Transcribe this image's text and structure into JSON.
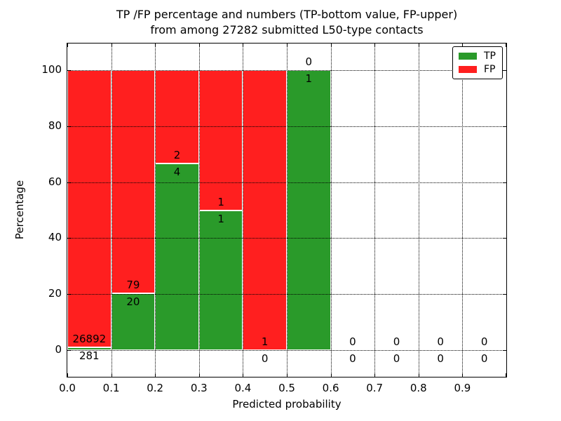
{
  "chart_data": {
    "type": "bar",
    "subtype": "stacked-percentage-histogram",
    "title_line1": "TP /FP percentage and numbers (TP-bottom value, FP-upper)",
    "title_line2": "from among 27282 submitted L50-type contacts",
    "xlabel": "Predicted probability",
    "ylabel": "Percentage",
    "x_tick_labels": [
      "0.0",
      "0.1",
      "0.2",
      "0.3",
      "0.4",
      "0.5",
      "0.6",
      "0.7",
      "0.8",
      "0.9"
    ],
    "y_ticks": [
      0,
      20,
      40,
      60,
      80,
      100
    ],
    "xlim": [
      0.0,
      1.0
    ],
    "ylim": [
      -9.5,
      109.5
    ],
    "bin_width": 0.1,
    "grid": true,
    "note": "Each bin stacked to 100%: green TP% bottom, red FP% top. Labels show raw counts: FP above the TP/FP boundary, TP below it.",
    "bins": [
      {
        "x0": 0.0,
        "x1": 0.1,
        "tp": 281,
        "fp": 26892
      },
      {
        "x0": 0.1,
        "x1": 0.2,
        "tp": 20,
        "fp": 79
      },
      {
        "x0": 0.2,
        "x1": 0.3,
        "tp": 4,
        "fp": 2
      },
      {
        "x0": 0.3,
        "x1": 0.4,
        "tp": 1,
        "fp": 1
      },
      {
        "x0": 0.4,
        "x1": 0.5,
        "tp": 0,
        "fp": 1
      },
      {
        "x0": 0.5,
        "x1": 0.6,
        "tp": 1,
        "fp": 0
      },
      {
        "x0": 0.6,
        "x1": 0.7,
        "tp": 0,
        "fp": 0
      },
      {
        "x0": 0.7,
        "x1": 0.8,
        "tp": 0,
        "fp": 0
      },
      {
        "x0": 0.8,
        "x1": 0.9,
        "tp": 0,
        "fp": 0
      },
      {
        "x0": 0.9,
        "x1": 1.0,
        "tp": 0,
        "fp": 0
      }
    ],
    "colors": {
      "tp": "#2a9a2a",
      "fp": "#ff1f1f"
    },
    "legend": {
      "position": "upper right",
      "entries": [
        {
          "label": "TP",
          "color": "#2a9a2a"
        },
        {
          "label": "FP",
          "color": "#ff1f1f"
        }
      ]
    }
  }
}
